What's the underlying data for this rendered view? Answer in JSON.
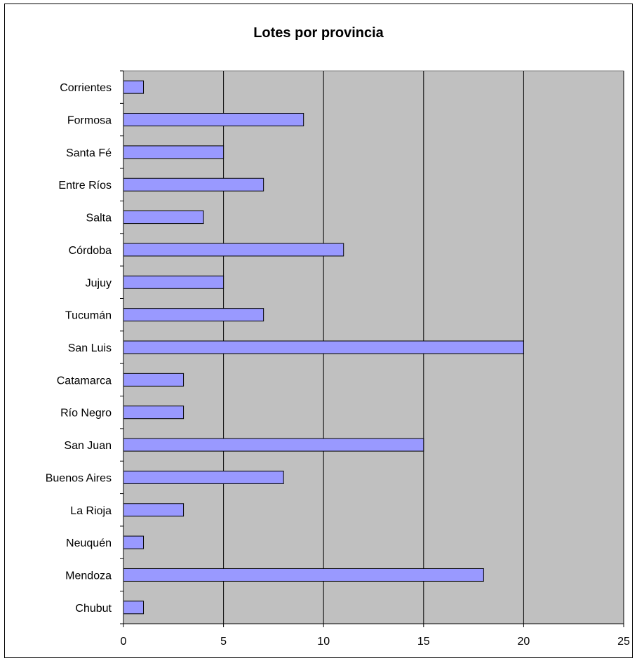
{
  "chart_data": {
    "type": "bar",
    "orientation": "horizontal",
    "title": "Lotes por provincia",
    "xlabel": "",
    "ylabel": "",
    "categories": [
      "Corrientes",
      "Formosa",
      "Santa Fé",
      "Entre Ríos",
      "Salta",
      "Córdoba",
      "Jujuy",
      "Tucumán",
      "San Luis",
      "Catamarca",
      "Río Negro",
      "San Juan",
      "Buenos Aires",
      "La Rioja",
      "Neuquén",
      "Mendoza",
      "Chubut"
    ],
    "values": [
      1,
      9,
      5,
      7,
      4,
      11,
      5,
      7,
      20,
      3,
      3,
      15,
      8,
      3,
      1,
      18,
      1
    ],
    "xlim": [
      0,
      25
    ],
    "xticks": [
      "0",
      "5",
      "10",
      "15",
      "20",
      "25"
    ],
    "grid": "vertical",
    "legend": "none",
    "colors": {
      "bar_fill": "#9999ff",
      "bar_stroke": "#000000",
      "plot_bg": "#c0c0c0",
      "grid": "#000000"
    }
  }
}
